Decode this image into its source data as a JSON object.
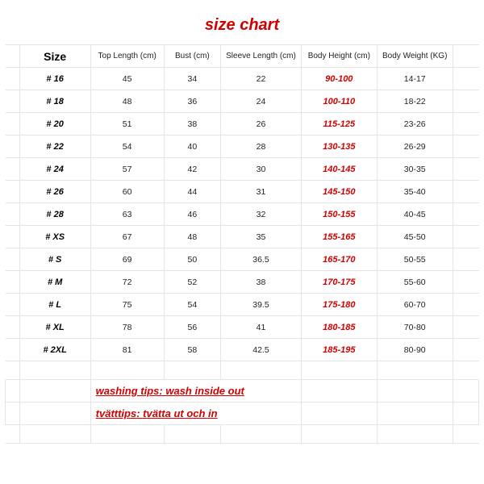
{
  "title": "size chart",
  "title_color": "#d40000",
  "title_fontsize": 20,
  "background_color": "#ffffff",
  "border_color": "#e4e4e4",
  "text_color": "#222222",
  "highlight_color": "#d40000",
  "columns": {
    "size": "Size",
    "top_length": "Top Length (cm)",
    "bust": "Bust (cm)",
    "sleeve": "Sleeve Length (cm)",
    "height": "Body Height (cm)",
    "weight": "Body Weight (KG)"
  },
  "column_widths_pct": [
    3,
    15,
    15.5,
    12,
    17,
    16,
    16,
    5.5
  ],
  "rows": [
    {
      "size": "# 16",
      "top": "45",
      "bust": "34",
      "sleeve": "22",
      "height": "90-100",
      "weight": "14-17"
    },
    {
      "size": "# 18",
      "top": "48",
      "bust": "36",
      "sleeve": "24",
      "height": "100-110",
      "weight": "18-22"
    },
    {
      "size": "# 20",
      "top": "51",
      "bust": "38",
      "sleeve": "26",
      "height": "115-125",
      "weight": "23-26"
    },
    {
      "size": "# 22",
      "top": "54",
      "bust": "40",
      "sleeve": "28",
      "height": "130-135",
      "weight": "26-29"
    },
    {
      "size": "# 24",
      "top": "57",
      "bust": "42",
      "sleeve": "30",
      "height": "140-145",
      "weight": "30-35"
    },
    {
      "size": "# 26",
      "top": "60",
      "bust": "44",
      "sleeve": "31",
      "height": "145-150",
      "weight": "35-40"
    },
    {
      "size": "# 28",
      "top": "63",
      "bust": "46",
      "sleeve": "32",
      "height": "150-155",
      "weight": "40-45"
    },
    {
      "size": "# XS",
      "top": "67",
      "bust": "48",
      "sleeve": "35",
      "height": "155-165",
      "weight": "45-50"
    },
    {
      "size": "# S",
      "top": "69",
      "bust": "50",
      "sleeve": "36.5",
      "height": "165-170",
      "weight": "50-55"
    },
    {
      "size": "# M",
      "top": "72",
      "bust": "52",
      "sleeve": "38",
      "height": "170-175",
      "weight": "55-60"
    },
    {
      "size": "# L",
      "top": "75",
      "bust": "54",
      "sleeve": "39.5",
      "height": "175-180",
      "weight": "60-70"
    },
    {
      "size": "# XL",
      "top": "78",
      "bust": "56",
      "sleeve": "41",
      "height": "180-185",
      "weight": "70-80"
    },
    {
      "size": "# 2XL",
      "top": "81",
      "bust": "58",
      "sleeve": "42.5",
      "height": "185-195",
      "weight": "80-90"
    }
  ],
  "tips": {
    "line1": "washing tips: wash inside out",
    "line2": "tvätttips: tvätta ut och in"
  }
}
